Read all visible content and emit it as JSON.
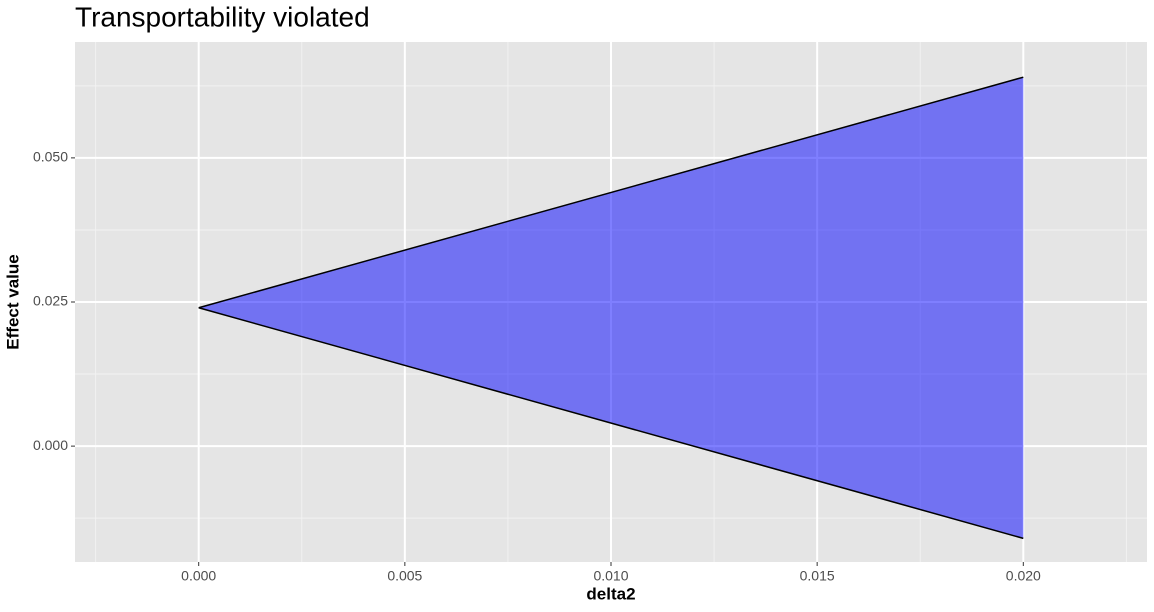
{
  "chart_data": {
    "type": "ribbon",
    "title": "Transportability violated",
    "x_label": "delta2",
    "y_label": "Effect value",
    "x": [
      0,
      0.02
    ],
    "ymin": [
      0.024,
      -0.016
    ],
    "ymax": [
      0.024,
      0.064
    ],
    "fill": "#0000ff",
    "fill_opacity": 0.5,
    "line_color": "#000000",
    "xlim": [
      -0.003,
      0.023
    ],
    "ylim": [
      -0.0201,
      0.0701
    ],
    "xticks": [
      {
        "value": 0,
        "label": "0.000"
      },
      {
        "value": 0.005,
        "label": "0.005"
      },
      {
        "value": 0.01,
        "label": "0.010"
      },
      {
        "value": 0.015,
        "label": "0.015"
      },
      {
        "value": 0.02,
        "label": "0.020"
      }
    ],
    "yticks": [
      {
        "value": 0,
        "label": "0.000"
      },
      {
        "value": 0.025,
        "label": "0.025"
      },
      {
        "value": 0.05,
        "label": "0.050"
      }
    ],
    "grid": true
  }
}
